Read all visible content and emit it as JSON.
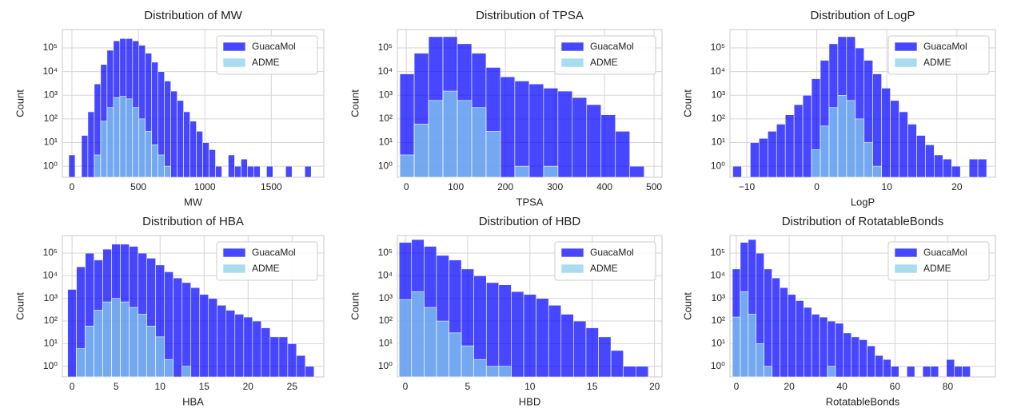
{
  "chart_data": [
    {
      "type": "histogram",
      "title": "Distribution of MW",
      "xlabel": "MW",
      "ylabel": "Count",
      "log_y": true,
      "grid": true,
      "legend": "upper right",
      "bins": [
        -24,
        24,
        72,
        120,
        168,
        216,
        264,
        312,
        360,
        408,
        456,
        504,
        552,
        600,
        648,
        696,
        744,
        792,
        840,
        888,
        936,
        984,
        1032,
        1080,
        1128,
        1176,
        1224,
        1272,
        1320,
        1368,
        1416,
        1464,
        1512,
        1560,
        1608,
        1656,
        1704,
        1752,
        1800
      ],
      "series": [
        {
          "name": "GuacaMol",
          "color": "#0000ff",
          "values": [
            3,
            0,
            20,
            200,
            3000,
            20000,
            80000,
            200000,
            250000,
            250000,
            200000,
            130000,
            60000,
            25000,
            10000,
            4000,
            1500,
            600,
            200,
            80,
            30,
            10,
            5,
            1,
            0,
            3,
            1,
            2,
            1,
            1,
            0,
            1,
            0,
            0,
            1,
            0,
            0,
            1
          ]
        },
        {
          "name": "ADME",
          "color": "#87ceeb",
          "values": [
            0,
            0,
            0,
            0,
            3,
            80,
            300,
            800,
            900,
            700,
            300,
            100,
            30,
            8,
            3,
            1,
            0,
            0,
            0,
            0,
            0,
            0,
            0,
            0,
            0,
            0,
            0,
            0,
            0,
            0,
            0,
            0,
            0,
            0,
            0,
            0,
            0,
            0
          ]
        }
      ],
      "xlim": [
        -72,
        1895
      ],
      "xticks": [
        0,
        500,
        1000,
        1500
      ],
      "ylim": [
        0.34,
        600000
      ],
      "yticks": [
        {
          "value": 1,
          "label": "10⁰"
        },
        {
          "value": 10,
          "label": "10¹"
        },
        {
          "value": 100,
          "label": "10²"
        },
        {
          "value": 1000,
          "label": "10³"
        },
        {
          "value": 10000,
          "label": "10⁴"
        },
        {
          "value": 100000,
          "label": "10⁵"
        }
      ]
    },
    {
      "type": "histogram",
      "title": "Distribution of TPSA",
      "xlabel": "TPSA",
      "ylabel": "Count",
      "log_y": true,
      "grid": true,
      "legend": "upper right",
      "bins": [
        -13,
        16,
        45,
        74,
        103,
        132,
        161,
        190,
        219,
        248,
        277,
        306,
        335,
        364,
        393,
        422,
        451,
        480
      ],
      "series": [
        {
          "name": "GuacaMol",
          "color": "#0000ff",
          "values": [
            8000,
            60000,
            300000,
            300000,
            150000,
            60000,
            15000,
            6000,
            4000,
            3000,
            2000,
            1500,
            800,
            400,
            150,
            30,
            1
          ]
        },
        {
          "name": "ADME",
          "color": "#87ceeb",
          "values": [
            3,
            60,
            600,
            1500,
            600,
            300,
            30,
            0,
            1,
            0,
            1,
            0,
            0,
            0,
            0,
            0,
            0
          ]
        }
      ],
      "xlim": [
        -18,
        516
      ],
      "xticks": [
        0,
        100,
        200,
        300,
        400,
        500
      ],
      "ylim": [
        0.34,
        600000
      ],
      "yticks": [
        {
          "value": 1,
          "label": "10⁰"
        },
        {
          "value": 10,
          "label": "10¹"
        },
        {
          "value": 100,
          "label": "10²"
        },
        {
          "value": 1000,
          "label": "10³"
        },
        {
          "value": 10000,
          "label": "10⁴"
        },
        {
          "value": 100000,
          "label": "10⁵"
        }
      ]
    },
    {
      "type": "histogram",
      "title": "Distribution of LogP",
      "xlabel": "LogP",
      "ylabel": "Count",
      "log_y": true,
      "grid": true,
      "legend": "upper right",
      "bins": [
        -12,
        -10.75,
        -9.5,
        -8.25,
        -7,
        -5.75,
        -4.5,
        -3.25,
        -2,
        -0.75,
        0.5,
        1.75,
        3,
        4.25,
        5.5,
        6.75,
        8,
        9.25,
        10.5,
        11.75,
        13,
        14.25,
        15.5,
        16.75,
        18,
        19.25,
        20.5,
        21.75,
        23,
        24.25
      ],
      "series": [
        {
          "name": "GuacaMol",
          "color": "#0000ff",
          "values": [
            1,
            0,
            10,
            15,
            30,
            60,
            150,
            400,
            1000,
            5000,
            30000,
            150000,
            300000,
            300000,
            100000,
            30000,
            8000,
            2000,
            600,
            200,
            60,
            20,
            8,
            3,
            2,
            1,
            0,
            2,
            2
          ]
        },
        {
          "name": "ADME",
          "color": "#87ceeb",
          "values": [
            0,
            0,
            0,
            0,
            0,
            0,
            0,
            0,
            0,
            5,
            50,
            300,
            1000,
            600,
            100,
            10,
            1,
            0,
            0,
            0,
            0,
            0,
            0,
            0,
            0,
            0,
            0,
            0,
            0
          ]
        }
      ],
      "xlim": [
        -12.4,
        25.5
      ],
      "xticks": [
        {
          "value": -10,
          "label": "−10"
        },
        0,
        10,
        20
      ],
      "ylim": [
        0.34,
        600000
      ],
      "yticks": [
        {
          "value": 1,
          "label": "10⁰"
        },
        {
          "value": 10,
          "label": "10¹"
        },
        {
          "value": 100,
          "label": "10²"
        },
        {
          "value": 1000,
          "label": "10³"
        },
        {
          "value": 10000,
          "label": "10⁴"
        },
        {
          "value": 100000,
          "label": "10⁵"
        }
      ]
    },
    {
      "type": "histogram",
      "title": "Distribution of HBA",
      "xlabel": "HBA",
      "ylabel": "Count",
      "log_y": true,
      "grid": true,
      "legend": "upper right",
      "bins": [
        -0.5,
        0.5,
        1.5,
        2.5,
        3.5,
        4.5,
        5.5,
        6.5,
        7.5,
        8.5,
        9.5,
        10.5,
        11.5,
        12.5,
        13.5,
        14.5,
        15.5,
        16.5,
        17.5,
        18.5,
        19.5,
        20.5,
        21.5,
        22.5,
        23.5,
        24.5,
        25.5,
        26.5,
        27.5
      ],
      "series": [
        {
          "name": "GuacaMol",
          "color": "#0000ff",
          "values": [
            2500,
            25000,
            100000,
            50000,
            150000,
            250000,
            250000,
            200000,
            100000,
            60000,
            30000,
            15000,
            8000,
            5000,
            3000,
            1500,
            1000,
            500,
            300,
            200,
            150,
            100,
            50,
            20,
            20,
            10,
            3,
            1
          ]
        },
        {
          "name": "ADME",
          "color": "#87ceeb",
          "values": [
            0,
            6,
            60,
            300,
            700,
            1000,
            700,
            400,
            200,
            60,
            20,
            2,
            0,
            1,
            0,
            0,
            0,
            0,
            0,
            0,
            0,
            0,
            0,
            0,
            0,
            0,
            0,
            0
          ]
        }
      ],
      "xlim": [
        -1.1,
        28.6
      ],
      "xticks": [
        0,
        5,
        10,
        15,
        20,
        25
      ],
      "ylim": [
        0.34,
        600000
      ],
      "yticks": [
        {
          "value": 1,
          "label": "10⁰"
        },
        {
          "value": 10,
          "label": "10¹"
        },
        {
          "value": 100,
          "label": "10²"
        },
        {
          "value": 1000,
          "label": "10³"
        },
        {
          "value": 10000,
          "label": "10⁴"
        },
        {
          "value": 100000,
          "label": "10⁵"
        }
      ]
    },
    {
      "type": "histogram",
      "title": "Distribution of HBD",
      "xlabel": "HBD",
      "ylabel": "Count",
      "log_y": true,
      "grid": true,
      "legend": "upper right",
      "bins": [
        -0.5,
        0.5,
        1.5,
        2.5,
        3.5,
        4.5,
        5.5,
        6.5,
        7.5,
        8.5,
        9.5,
        10.5,
        11.5,
        12.5,
        13.5,
        14.5,
        15.5,
        16.5,
        17.5,
        18.5,
        19.5
      ],
      "series": [
        {
          "name": "GuacaMol",
          "color": "#0000ff",
          "values": [
            300000,
            400000,
            200000,
            80000,
            50000,
            20000,
            10000,
            5000,
            4000,
            2000,
            1500,
            1000,
            500,
            200,
            100,
            50,
            20,
            5,
            1,
            1
          ]
        },
        {
          "name": "ADME",
          "color": "#87ceeb",
          "values": [
            900,
            2000,
            400,
            100,
            30,
            8,
            2,
            1,
            1,
            0,
            0,
            0,
            0,
            0,
            0,
            0,
            0,
            0,
            0,
            0
          ]
        }
      ],
      "xlim": [
        -0.64,
        20.6
      ],
      "xticks": [
        0,
        5,
        10,
        15,
        20
      ],
      "ylim": [
        0.34,
        600000
      ],
      "yticks": [
        {
          "value": 1,
          "label": "10⁰"
        },
        {
          "value": 10,
          "label": "10¹"
        },
        {
          "value": 100,
          "label": "10²"
        },
        {
          "value": 1000,
          "label": "10³"
        },
        {
          "value": 10000,
          "label": "10⁴"
        },
        {
          "value": 100000,
          "label": "10⁵"
        }
      ]
    },
    {
      "type": "histogram",
      "title": "Distribution of RotatableBonds",
      "xlabel": "RotatableBonds",
      "ylabel": "Count",
      "log_y": true,
      "grid": true,
      "legend": "upper right",
      "bins": [
        -1.5,
        1.5,
        4.5,
        7.5,
        10.5,
        13.5,
        16.5,
        19.5,
        22.5,
        25.5,
        28.5,
        31.5,
        34.5,
        37.5,
        40.5,
        43.5,
        46.5,
        49.5,
        52.5,
        55.5,
        58.5,
        61.5,
        64.5,
        67.5,
        70.5,
        73.5,
        76.5,
        79.5,
        82.5,
        85.5,
        88.5
      ],
      "series": [
        {
          "name": "GuacaMol",
          "color": "#0000ff",
          "values": [
            20000,
            300000,
            400000,
            100000,
            20000,
            8000,
            3000,
            1500,
            800,
            400,
            200,
            150,
            100,
            80,
            30,
            20,
            15,
            8,
            3,
            2,
            1,
            0,
            1,
            0,
            1,
            1,
            0,
            2,
            1,
            1
          ]
        },
        {
          "name": "ADME",
          "color": "#87ceeb",
          "values": [
            150,
            2000,
            200,
            10,
            1,
            0,
            0,
            0,
            0,
            0,
            0,
            0,
            1,
            0,
            0,
            0,
            0,
            0,
            0,
            0,
            0,
            0,
            0,
            0,
            0,
            0,
            0,
            0,
            0,
            0
          ]
        }
      ],
      "xlim": [
        -2.4,
        98
      ],
      "xticks": [
        0,
        20,
        40,
        60,
        80
      ],
      "ylim": [
        0.34,
        600000
      ],
      "yticks": [
        {
          "value": 1,
          "label": "10⁰"
        },
        {
          "value": 10,
          "label": "10¹"
        },
        {
          "value": 100,
          "label": "10²"
        },
        {
          "value": 1000,
          "label": "10³"
        },
        {
          "value": 10000,
          "label": "10⁴"
        },
        {
          "value": 100000,
          "label": "10⁵"
        }
      ]
    }
  ]
}
